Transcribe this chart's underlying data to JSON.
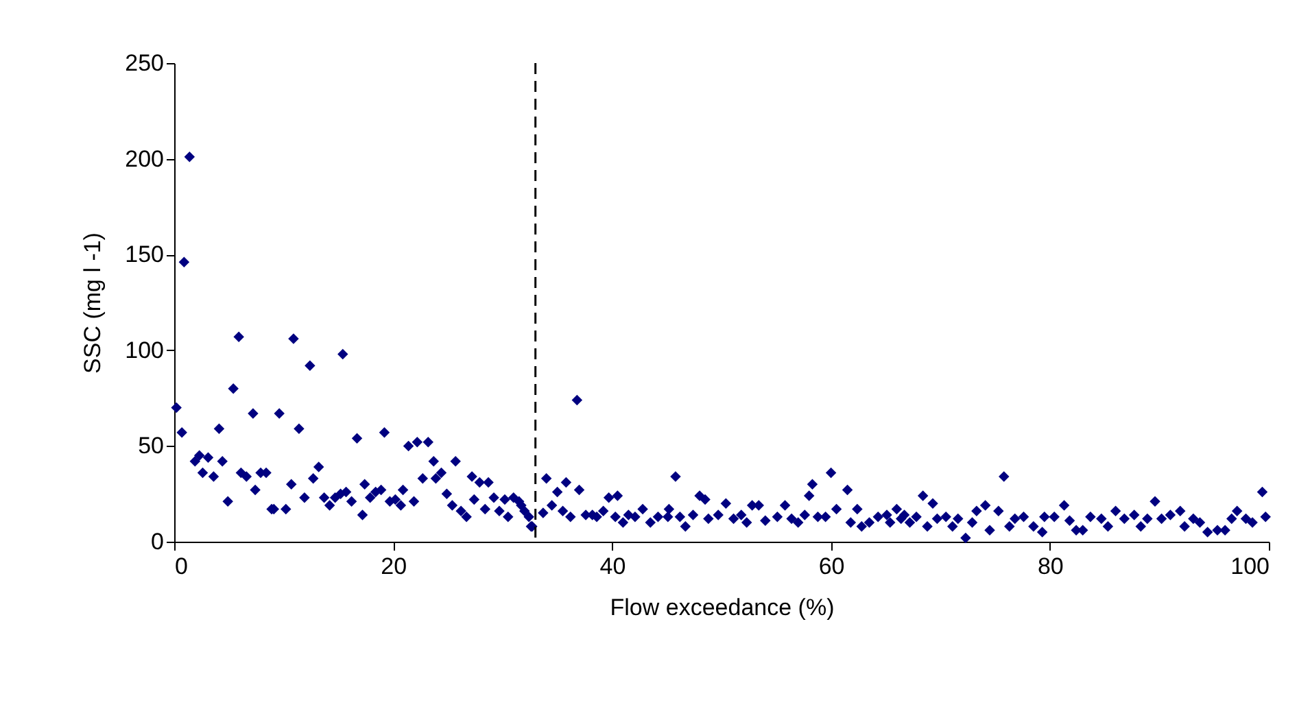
{
  "chart_data": {
    "type": "scatter",
    "xlabel": "Flow exceedance (%)",
    "ylabel": "SSC (mg l -1)",
    "marker": "diamond",
    "xlim": [
      0,
      100
    ],
    "xticks": [
      0,
      20,
      40,
      60,
      80,
      100
    ],
    "ylim": [
      0,
      250
    ],
    "yticks": [
      0,
      50,
      100,
      150,
      200,
      250
    ],
    "ref_lines": [
      {
        "axis": "x",
        "value": 33,
        "color": "#000000",
        "line_style": "dashed"
      }
    ],
    "series": [
      {
        "color": "#000080",
        "x": [
          0.2,
          0.7,
          0.9,
          1.4,
          1.9,
          2.3,
          2.6,
          3.1,
          3.6,
          4.1,
          4.4,
          4.9,
          5.4,
          5.9,
          6.1,
          6.6,
          7.2,
          7.4,
          7.9,
          8.4,
          8.9,
          9.1,
          9.6,
          10.2,
          10.7,
          10.9,
          11.4,
          11.9,
          12.4,
          12.7,
          13.2,
          13.7,
          14.2,
          14.7,
          15.2,
          15.4,
          15.7,
          16.2,
          16.7,
          17.2,
          17.4,
          17.9,
          18.4,
          18.9,
          19.2,
          19.7,
          20.2,
          20.7,
          20.9,
          21.4,
          21.9,
          22.2,
          22.7,
          23.2,
          23.7,
          23.9,
          24.4,
          24.9,
          25.4,
          25.7,
          26.2,
          26.7,
          27.2,
          27.4,
          27.9,
          28.4,
          28.7,
          29.2,
          29.7,
          30.2,
          30.5,
          31.0,
          31.5,
          31.7,
          32.0,
          32.4,
          32.6,
          32.7,
          33.7,
          34.0,
          34.5,
          35.0,
          35.5,
          35.8,
          36.2,
          36.8,
          37.0,
          37.6,
          38.2,
          38.6,
          39.2,
          39.7,
          40.3,
          40.5,
          41.0,
          41.5,
          42.1,
          42.8,
          43.5,
          44.2,
          45.1,
          45.2,
          45.8,
          46.2,
          46.7,
          47.4,
          48.0,
          48.5,
          48.8,
          49.7,
          50.4,
          51.1,
          51.8,
          52.3,
          52.8,
          53.4,
          54.0,
          55.1,
          55.8,
          56.4,
          57.0,
          57.6,
          58.0,
          58.3,
          58.8,
          59.5,
          60.0,
          60.5,
          61.5,
          61.8,
          62.4,
          62.8,
          63.5,
          64.3,
          65.1,
          65.4,
          66.0,
          66.7,
          66.4,
          67.2,
          67.8,
          68.4,
          68.8,
          69.3,
          69.7,
          70.5,
          71.1,
          71.6,
          72.3,
          72.9,
          73.3,
          74.1,
          74.5,
          75.3,
          75.8,
          76.3,
          76.8,
          77.6,
          78.5,
          79.3,
          79.5,
          80.4,
          81.3,
          81.8,
          82.4,
          83.0,
          83.7,
          84.7,
          85.3,
          86.0,
          86.8,
          87.7,
          88.3,
          88.9,
          89.6,
          90.2,
          91.0,
          91.9,
          92.3,
          93.1,
          93.7,
          94.4,
          95.3,
          96.0,
          96.6,
          97.1,
          97.9,
          98.5,
          99.4,
          99.7
        ],
        "values": [
          70,
          57,
          146,
          201,
          42,
          45,
          36,
          44,
          34,
          59,
          42,
          21,
          80,
          107,
          36,
          34,
          67,
          27,
          36,
          36,
          17,
          17,
          67,
          17,
          30,
          106,
          59,
          23,
          92,
          33,
          39,
          23,
          19,
          23,
          25,
          98,
          26,
          21,
          54,
          14,
          30,
          23,
          26,
          27,
          57,
          21,
          22,
          19,
          27,
          50,
          21,
          52,
          33,
          52,
          42,
          33,
          36,
          25,
          19,
          42,
          16,
          13,
          34,
          22,
          31,
          17,
          31,
          23,
          16,
          22,
          13,
          23,
          21,
          19,
          16,
          13,
          8,
          8,
          15,
          33,
          19,
          26,
          16,
          31,
          13,
          74,
          27,
          14,
          14,
          13,
          16,
          23,
          13,
          24,
          10,
          14,
          13,
          17,
          10,
          13,
          13,
          17,
          34,
          13,
          8,
          14,
          24,
          22,
          12,
          14,
          20,
          12,
          14,
          10,
          19,
          19,
          11,
          13,
          19,
          12,
          10,
          14,
          24,
          30,
          13,
          13,
          36,
          17,
          27,
          10,
          17,
          8,
          10,
          13,
          14,
          10,
          17,
          14,
          12,
          10,
          13,
          24,
          8,
          20,
          12,
          13,
          8,
          12,
          2,
          10,
          16,
          19,
          6,
          16,
          34,
          8,
          12,
          13,
          8,
          5,
          13,
          13,
          19,
          11,
          6,
          6,
          13,
          12,
          8,
          16,
          12,
          14,
          8,
          12,
          21,
          12,
          14,
          16,
          8,
          12,
          10,
          5,
          6,
          6,
          12,
          16,
          12,
          10,
          26,
          13
        ]
      }
    ]
  }
}
